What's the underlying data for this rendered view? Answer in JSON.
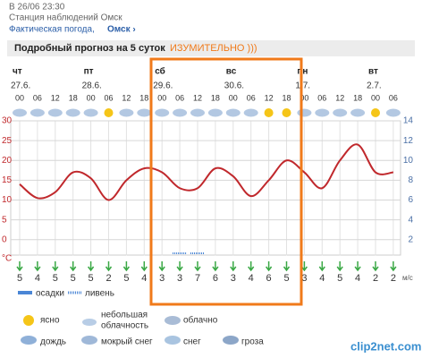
{
  "header": {
    "time": "В 26/06 23:30",
    "station": "Станция наблюдений Омск",
    "link": "Фактическая погода,",
    "city": "Омск ›"
  },
  "panel_title": "Подробный прогноз на 5 суток",
  "annotation": "ИЗУМИТЕЛЬНО )))",
  "days": [
    {
      "weekday": "чт",
      "date": "27.6."
    },
    {
      "weekday": "пт",
      "date": "28.6."
    },
    {
      "weekday": "сб",
      "date": "29.6."
    },
    {
      "weekday": "вс",
      "date": "30.6."
    },
    {
      "weekday": "пн",
      "date": "1.7."
    },
    {
      "weekday": "вт",
      "date": "2.7."
    }
  ],
  "hours": [
    "00",
    "06",
    "12",
    "18",
    "00",
    "06",
    "12",
    "18",
    "00",
    "06",
    "12",
    "18",
    "00",
    "06",
    "12",
    "18",
    "00",
    "06",
    "12",
    "18",
    "00",
    "06"
  ],
  "chart_data": {
    "type": "line",
    "color": "#c0282c",
    "values": [
      14,
      10.5,
      12,
      17,
      15.5,
      10,
      15,
      18,
      17,
      13,
      13,
      18,
      16,
      11,
      15,
      20,
      17,
      13,
      20,
      24,
      17,
      17
    ],
    "ylim": [
      -4,
      30
    ],
    "yticks": [
      0,
      5,
      10,
      15,
      20,
      25,
      30
    ],
    "yunit": "°C",
    "y2lim": [
      0.4,
      14
    ],
    "y2ticks": [
      2,
      4,
      6,
      8,
      10,
      12,
      14
    ],
    "y2unit": "м/с",
    "grid": true
  },
  "wind": [
    5,
    4,
    5,
    5,
    5,
    2,
    5,
    4,
    3,
    3,
    7,
    6,
    3,
    4,
    6,
    5,
    3,
    4,
    5,
    4,
    2,
    2
  ],
  "precip_legend": [
    "осадки",
    "ливень"
  ],
  "conditions": [
    "ясно",
    "небольшая",
    "облачность",
    "облачно",
    "дождь",
    "мокрый снег",
    "снег",
    "гроза"
  ],
  "watermark": "clip2net.com"
}
